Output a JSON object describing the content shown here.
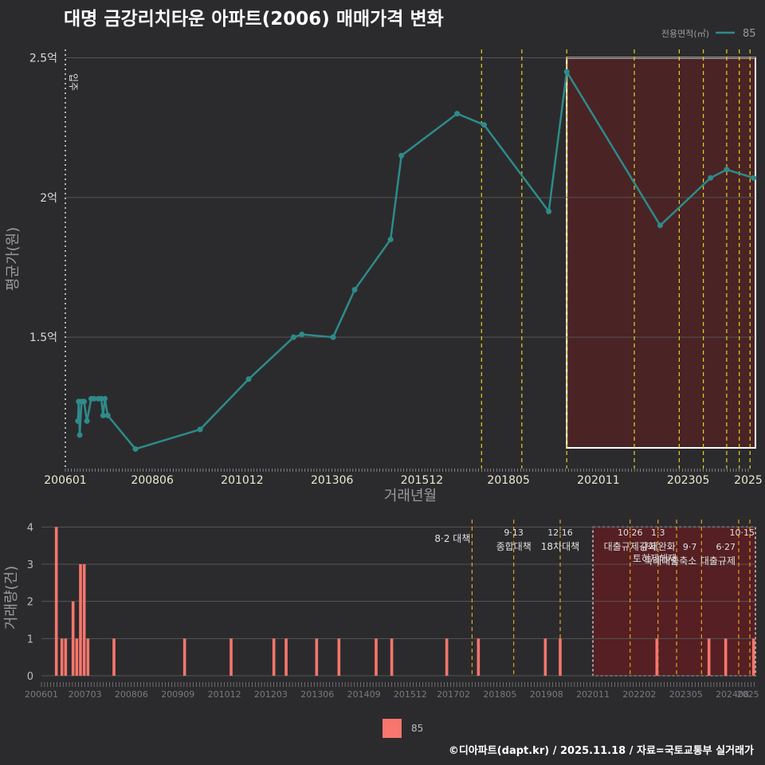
{
  "title": "대명 금강리치타운 아파트(2006) 매매가격 변화",
  "footer": "©디아파트(dapt.kr) / 2025.11.18 / 자료=국토교통부 실거래가",
  "colors": {
    "price_line": "#2e8b8b",
    "volume_bar": "#f8766d",
    "policy_line": "#e6d21e",
    "policy_line_low": "#e6a21e",
    "highlight": "#5a1e22",
    "background": "#2b2b2d"
  },
  "chart_data": [
    {
      "type": "line",
      "title": "",
      "xlabel": "거래년월",
      "ylabel": "평균가(원)",
      "legend_title": "전용면적(㎡)",
      "series": [
        {
          "name": "85"
        }
      ],
      "x_ticks": [
        "200601",
        "200806",
        "201012",
        "201306",
        "201512",
        "201805",
        "202011",
        "202305",
        "2025"
      ],
      "x_tick_values": [
        2006.0,
        2008.42,
        2010.92,
        2013.42,
        2015.92,
        2018.33,
        2020.83,
        2023.33,
        2025.0
      ],
      "y_ticks": [
        "1.5억",
        "2억",
        "2.5억"
      ],
      "y_tick_values": [
        1.5,
        2.0,
        2.5
      ],
      "xlim": [
        2006.0,
        2025.2
      ],
      "ylim": [
        1.03,
        2.53
      ],
      "points": [
        [
          2006.35,
          1.2
        ],
        [
          2006.37,
          1.27
        ],
        [
          2006.4,
          1.15
        ],
        [
          2006.45,
          1.27
        ],
        [
          2006.52,
          1.27
        ],
        [
          2006.6,
          1.2
        ],
        [
          2006.72,
          1.28
        ],
        [
          2006.8,
          1.28
        ],
        [
          2006.92,
          1.28
        ],
        [
          2007.0,
          1.28
        ],
        [
          2007.05,
          1.22
        ],
        [
          2007.1,
          1.28
        ],
        [
          2007.18,
          1.22
        ],
        [
          2007.95,
          1.1
        ],
        [
          2009.75,
          1.17
        ],
        [
          2011.1,
          1.35
        ],
        [
          2012.35,
          1.5
        ],
        [
          2012.58,
          1.51
        ],
        [
          2013.45,
          1.5
        ],
        [
          2014.05,
          1.67
        ],
        [
          2015.05,
          1.85
        ],
        [
          2015.35,
          2.15
        ],
        [
          2016.9,
          2.3
        ],
        [
          2017.65,
          2.26
        ],
        [
          2019.45,
          1.95
        ],
        [
          2019.95,
          2.45
        ],
        [
          2022.55,
          1.9
        ],
        [
          2023.95,
          2.07
        ],
        [
          2024.4,
          2.1
        ],
        [
          2025.15,
          2.07
        ]
      ],
      "highlight_range": [
        2019.95,
        2025.2
      ],
      "policy_lines": [
        2017.58,
        2018.7,
        2019.95,
        2021.83,
        2023.08,
        2023.75,
        2024.4,
        2024.75,
        2025.05
      ]
    },
    {
      "type": "bar",
      "xlabel": "",
      "ylabel": "거래량(건)",
      "y_ticks": [
        "0",
        "1",
        "2",
        "3",
        "4"
      ],
      "y_tick_values": [
        0,
        1,
        2,
        3,
        4
      ],
      "ylim": [
        0,
        4.2
      ],
      "xlim": [
        2006.0,
        2025.2
      ],
      "x_ticks": [
        "200601",
        "200703",
        "200806",
        "200909",
        "201012",
        "201203",
        "201306",
        "201409",
        "201512",
        "201702",
        "201805",
        "201908",
        "202011",
        "202202",
        "202305",
        "202408",
        "2025"
      ],
      "x_tick_values": [
        2006.0,
        2007.17,
        2008.42,
        2009.67,
        2010.92,
        2012.17,
        2013.42,
        2014.67,
        2015.92,
        2017.08,
        2018.33,
        2019.58,
        2020.83,
        2022.08,
        2023.33,
        2024.58,
        2025.0
      ],
      "legend": [
        {
          "name": "85"
        }
      ],
      "bars": [
        [
          2006.4,
          4
        ],
        [
          2006.55,
          1
        ],
        [
          2006.65,
          1
        ],
        [
          2006.85,
          2
        ],
        [
          2006.95,
          1
        ],
        [
          2007.05,
          3
        ],
        [
          2007.15,
          3
        ],
        [
          2007.25,
          1
        ],
        [
          2007.95,
          1
        ],
        [
          2009.85,
          1
        ],
        [
          2011.1,
          1
        ],
        [
          2012.25,
          1
        ],
        [
          2012.58,
          1
        ],
        [
          2013.4,
          1
        ],
        [
          2014.0,
          1
        ],
        [
          2015.0,
          1
        ],
        [
          2015.42,
          1
        ],
        [
          2016.9,
          1
        ],
        [
          2017.75,
          1
        ],
        [
          2019.55,
          1
        ],
        [
          2019.95,
          1
        ],
        [
          2022.55,
          1
        ],
        [
          2023.95,
          1
        ],
        [
          2024.4,
          1
        ],
        [
          2025.15,
          1
        ]
      ],
      "highlight_range": [
        2020.83,
        2025.2
      ],
      "policies": [
        {
          "x": 2017.58,
          "date": "",
          "label": "8·2 대책"
        },
        {
          "x": 2018.7,
          "date": "9·13",
          "label": "종합대책"
        },
        {
          "x": 2019.95,
          "date": "12·16",
          "label": "18차대책"
        },
        {
          "x": 2021.83,
          "date": "10·26",
          "label": "대출규제강화"
        },
        {
          "x": 2022.58,
          "date": "1·3",
          "label": "규제완화"
        },
        {
          "x": 2023.75,
          "date": "9·7",
          "label": "특례대출축소"
        },
        {
          "x": 2023.08,
          "date": "",
          "label": "토허제해제"
        },
        {
          "x": 2024.75,
          "date": "6·27",
          "label": "대출규제"
        },
        {
          "x": 2025.05,
          "date": "10·15",
          "label": ""
        }
      ],
      "start_marker": "입주"
    }
  ]
}
